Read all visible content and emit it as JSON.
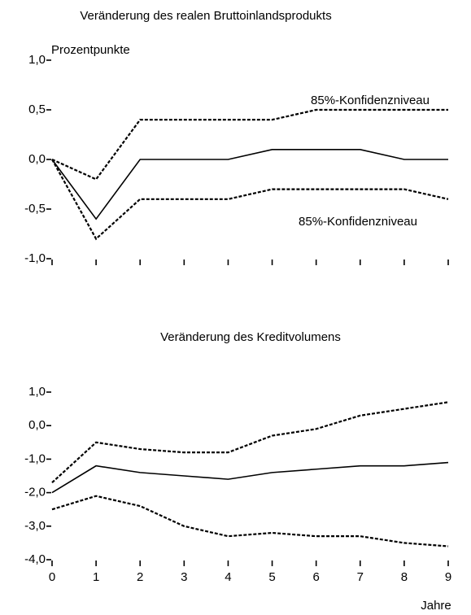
{
  "chart_data": [
    {
      "type": "line",
      "title": "Veränderung des realen Bruttoinlandsprodukts",
      "ylabel": "Prozentpunkte",
      "x": [
        0,
        1,
        2,
        3,
        4,
        5,
        6,
        7,
        8,
        9
      ],
      "xlim": [
        0,
        9
      ],
      "ylim": [
        -1,
        1
      ],
      "yticks": [
        {
          "value": 1,
          "label": "1,0"
        },
        {
          "value": 0.5,
          "label": "0,5"
        },
        {
          "value": 0,
          "label": "0,0"
        },
        {
          "value": -0.5,
          "label": "-0,5"
        },
        {
          "value": -1,
          "label": "-1,0"
        }
      ],
      "series": [
        {
          "color": "#000000",
          "style": "solid",
          "values": [
            0,
            -0.6,
            0,
            0,
            0,
            0.1,
            0.1,
            0.1,
            0,
            0
          ]
        },
        {
          "color": "#000000",
          "style": "dashed",
          "values": [
            0,
            -0.2,
            0.4,
            0.4,
            0.4,
            0.4,
            0.5,
            0.5,
            0.5,
            0.5
          ]
        },
        {
          "color": "#000000",
          "style": "dashed",
          "values": [
            0,
            -0.8,
            -0.4,
            -0.4,
            -0.4,
            -0.3,
            -0.3,
            -0.3,
            -0.3,
            -0.4
          ]
        }
      ],
      "annotations": [
        "85%-Konfidenzniveau",
        "85%-Konfidenzniveau"
      ]
    },
    {
      "type": "line",
      "title": "Veränderung des Kreditvolumens",
      "xlabel": "Jahre",
      "x": [
        0,
        1,
        2,
        3,
        4,
        5,
        6,
        7,
        8,
        9
      ],
      "xlim": [
        0,
        9
      ],
      "xticks": [
        0,
        1,
        2,
        3,
        4,
        5,
        6,
        7,
        8,
        9
      ],
      "ylim": [
        -4,
        1
      ],
      "yticks": [
        {
          "value": 1,
          "label": "1,0"
        },
        {
          "value": 0,
          "label": "0,0"
        },
        {
          "value": -1,
          "label": "-1,0"
        },
        {
          "value": -2,
          "label": "-2,0"
        },
        {
          "value": -3,
          "label": "-3,0"
        },
        {
          "value": -4,
          "label": "-4,0"
        }
      ],
      "series": [
        {
          "color": "#000000",
          "style": "solid",
          "values": [
            -2.0,
            -1.2,
            -1.4,
            -1.5,
            -1.6,
            -1.4,
            -1.3,
            -1.2,
            -1.2,
            -1.1
          ]
        },
        {
          "color": "#000000",
          "style": "dashed",
          "values": [
            -1.7,
            -0.5,
            -0.7,
            -0.8,
            -0.8,
            -0.3,
            -0.1,
            0.3,
            0.5,
            0.7
          ]
        },
        {
          "color": "#000000",
          "style": "dashed",
          "values": [
            -2.5,
            -2.1,
            -2.4,
            -3.0,
            -3.3,
            -3.2,
            -3.3,
            -3.3,
            -3.5,
            -3.6
          ]
        }
      ]
    }
  ]
}
